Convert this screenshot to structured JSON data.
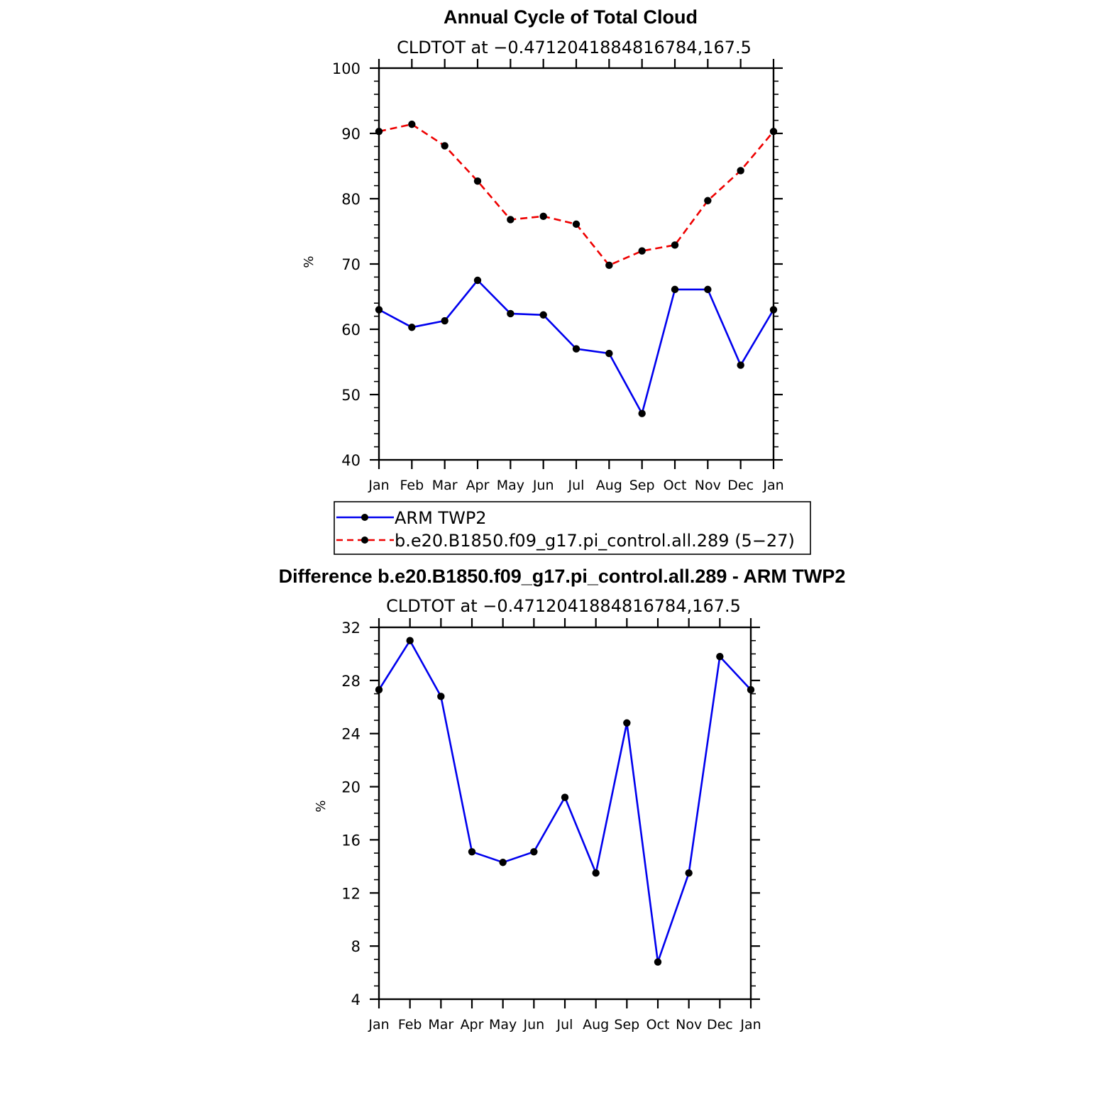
{
  "chart_data": [
    {
      "type": "line",
      "title": "Annual Cycle of Total Cloud",
      "subtitle": "CLDTOT at −0.4712041884816784,167.5",
      "ylabel": "%",
      "ylim": [
        40,
        100
      ],
      "yticks": [
        40,
        50,
        60,
        70,
        80,
        90,
        100
      ],
      "categories": [
        "Jan",
        "Feb",
        "Mar",
        "Apr",
        "May",
        "Jun",
        "Jul",
        "Aug",
        "Sep",
        "Oct",
        "Nov",
        "Dec",
        "Jan"
      ],
      "grid": false,
      "legend": "below",
      "series": [
        {
          "name": "ARM TWP2",
          "color": "#0000ee",
          "dash": "solid",
          "values": [
            63.0,
            60.3,
            61.3,
            67.5,
            62.4,
            62.2,
            57.0,
            56.3,
            47.1,
            66.1,
            66.1,
            54.5,
            63.0
          ]
        },
        {
          "name": "b.e20.B1850.f09_g17.pi_control.all.289 (5−27)",
          "color": "#ee0000",
          "dash": "dashed",
          "values": [
            90.3,
            91.4,
            88.1,
            82.7,
            76.8,
            77.3,
            76.1,
            69.8,
            72.0,
            72.9,
            79.7,
            84.3,
            90.3
          ]
        }
      ]
    },
    {
      "type": "line",
      "title": "Difference b.e20.B1850.f09_g17.pi_control.all.289 - ARM TWP2",
      "subtitle": "CLDTOT at −0.4712041884816784,167.5",
      "ylabel": "%",
      "ylim": [
        4,
        32
      ],
      "yticks": [
        4,
        8,
        12,
        16,
        20,
        24,
        28,
        32
      ],
      "categories": [
        "Jan",
        "Feb",
        "Mar",
        "Apr",
        "May",
        "Jun",
        "Jul",
        "Aug",
        "Sep",
        "Oct",
        "Nov",
        "Dec",
        "Jan"
      ],
      "grid": false,
      "series": [
        {
          "color": "#0000ee",
          "dash": "solid",
          "values": [
            27.3,
            31.0,
            26.8,
            15.1,
            14.3,
            15.1,
            19.2,
            13.5,
            24.8,
            6.8,
            13.5,
            29.8,
            27.3
          ]
        }
      ]
    }
  ]
}
